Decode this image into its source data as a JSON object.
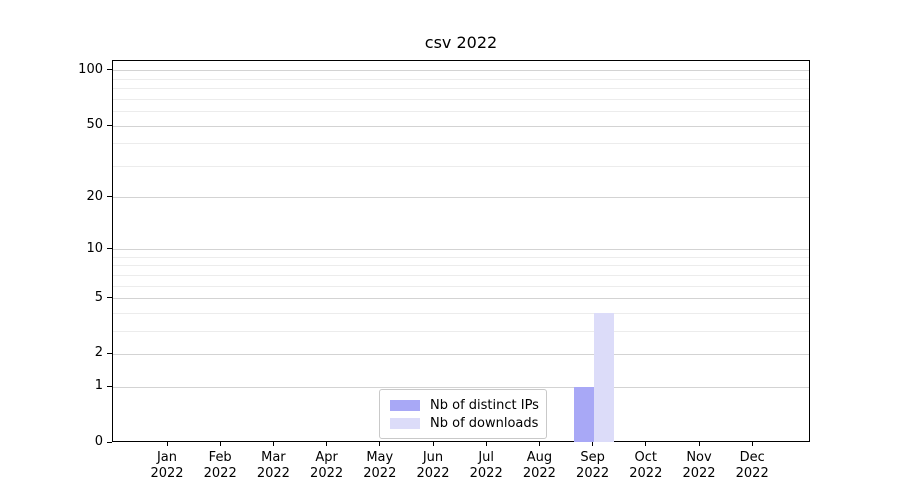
{
  "chart_data": {
    "type": "bar",
    "title": "csv 2022",
    "categories": [
      "Jan 2022",
      "Feb 2022",
      "Mar 2022",
      "Apr 2022",
      "May 2022",
      "Jun 2022",
      "Jul 2022",
      "Aug 2022",
      "Sep 2022",
      "Oct 2022",
      "Nov 2022",
      "Dec 2022"
    ],
    "series": [
      {
        "name": "Nb of distinct IPs",
        "color": "#a8a8f6",
        "values": [
          0,
          0,
          0,
          0,
          0,
          0,
          0,
          0,
          1,
          0,
          0,
          0
        ]
      },
      {
        "name": "Nb of downloads",
        "color": "#dcdcf9",
        "values": [
          0,
          0,
          0,
          0,
          0,
          0,
          0,
          0,
          4,
          0,
          0,
          0
        ]
      }
    ],
    "xlabel": "",
    "ylabel": "",
    "y_scale": "log10(1+y)",
    "y_ticks_labeled": [
      0,
      1,
      2,
      5,
      10,
      20,
      50,
      100
    ],
    "y_minor_gridlines": [
      3,
      4,
      6,
      7,
      8,
      9,
      30,
      40,
      60,
      70,
      80,
      90
    ],
    "ylim": [
      0,
      113
    ],
    "grid": true,
    "legend": {
      "position": "lower center",
      "entries": [
        "Nb of distinct IPs",
        "Nb of downloads"
      ]
    },
    "colors": {
      "axis": "#000000",
      "grid_major": "#d3d3d3",
      "grid_minor": "#ececec",
      "background": "#ffffff"
    }
  }
}
